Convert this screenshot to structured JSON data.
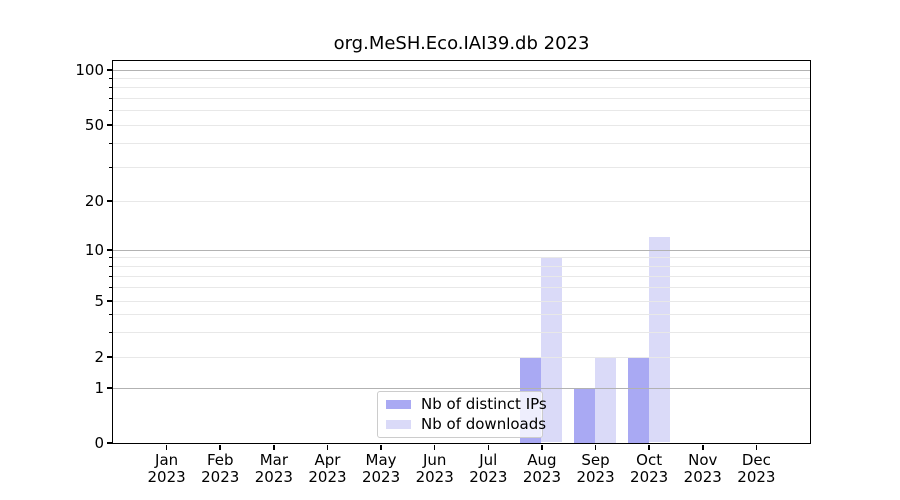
{
  "chart_data": {
    "type": "bar",
    "title": "org.MeSH.Eco.IAI39.db 2023",
    "categories": [
      "Jan 2023",
      "Feb 2023",
      "Mar 2023",
      "Apr 2023",
      "May 2023",
      "Jun 2023",
      "Jul 2023",
      "Aug 2023",
      "Sep 2023",
      "Oct 2023",
      "Nov 2023",
      "Dec 2023"
    ],
    "x_tick_month_labels": [
      "Jan",
      "Feb",
      "Mar",
      "Apr",
      "May",
      "Jun",
      "Jul",
      "Aug",
      "Sep",
      "Oct",
      "Nov",
      "Dec"
    ],
    "x_tick_year_label": "2023",
    "series": [
      {
        "name": "Nb of distinct IPs",
        "color": "#a9a9f3",
        "values": [
          0,
          0,
          0,
          0,
          0,
          0,
          0,
          2,
          1,
          2,
          0,
          0
        ]
      },
      {
        "name": "Nb of downloads",
        "color": "#dadaf8",
        "values": [
          0,
          0,
          0,
          0,
          0,
          0,
          0,
          9,
          2,
          12,
          0,
          0
        ]
      }
    ],
    "xlabel": "",
    "ylabel": "",
    "y_axis": {
      "scale": "log-like (0 baseline, log above 1)",
      "tick_values": [
        0,
        1,
        2,
        5,
        10,
        20,
        50,
        100
      ],
      "tick_labels": [
        "0",
        "1",
        "2",
        "5",
        "10",
        "20",
        "50",
        "100"
      ],
      "major_grid_values": [
        1,
        10,
        100
      ],
      "minor_grid_values": [
        2,
        3,
        4,
        5,
        6,
        7,
        8,
        9,
        20,
        30,
        40,
        50,
        60,
        70,
        80,
        90
      ],
      "ylim": [
        0,
        100
      ]
    },
    "legend": {
      "position": "bottom-center-inside",
      "entries": [
        "Nb of distinct IPs",
        "Nb of downloads"
      ]
    },
    "grid": {
      "shown": true,
      "major_color": "#b2b2b2",
      "minor_color": "#e8e8e8"
    }
  },
  "colors": {
    "background": "#ffffff",
    "text": "#000000",
    "axis": "#000000",
    "bar_distinct_ips": "#a9a9f3",
    "bar_downloads": "#dadaf8",
    "legend_border": "#cccccc"
  }
}
